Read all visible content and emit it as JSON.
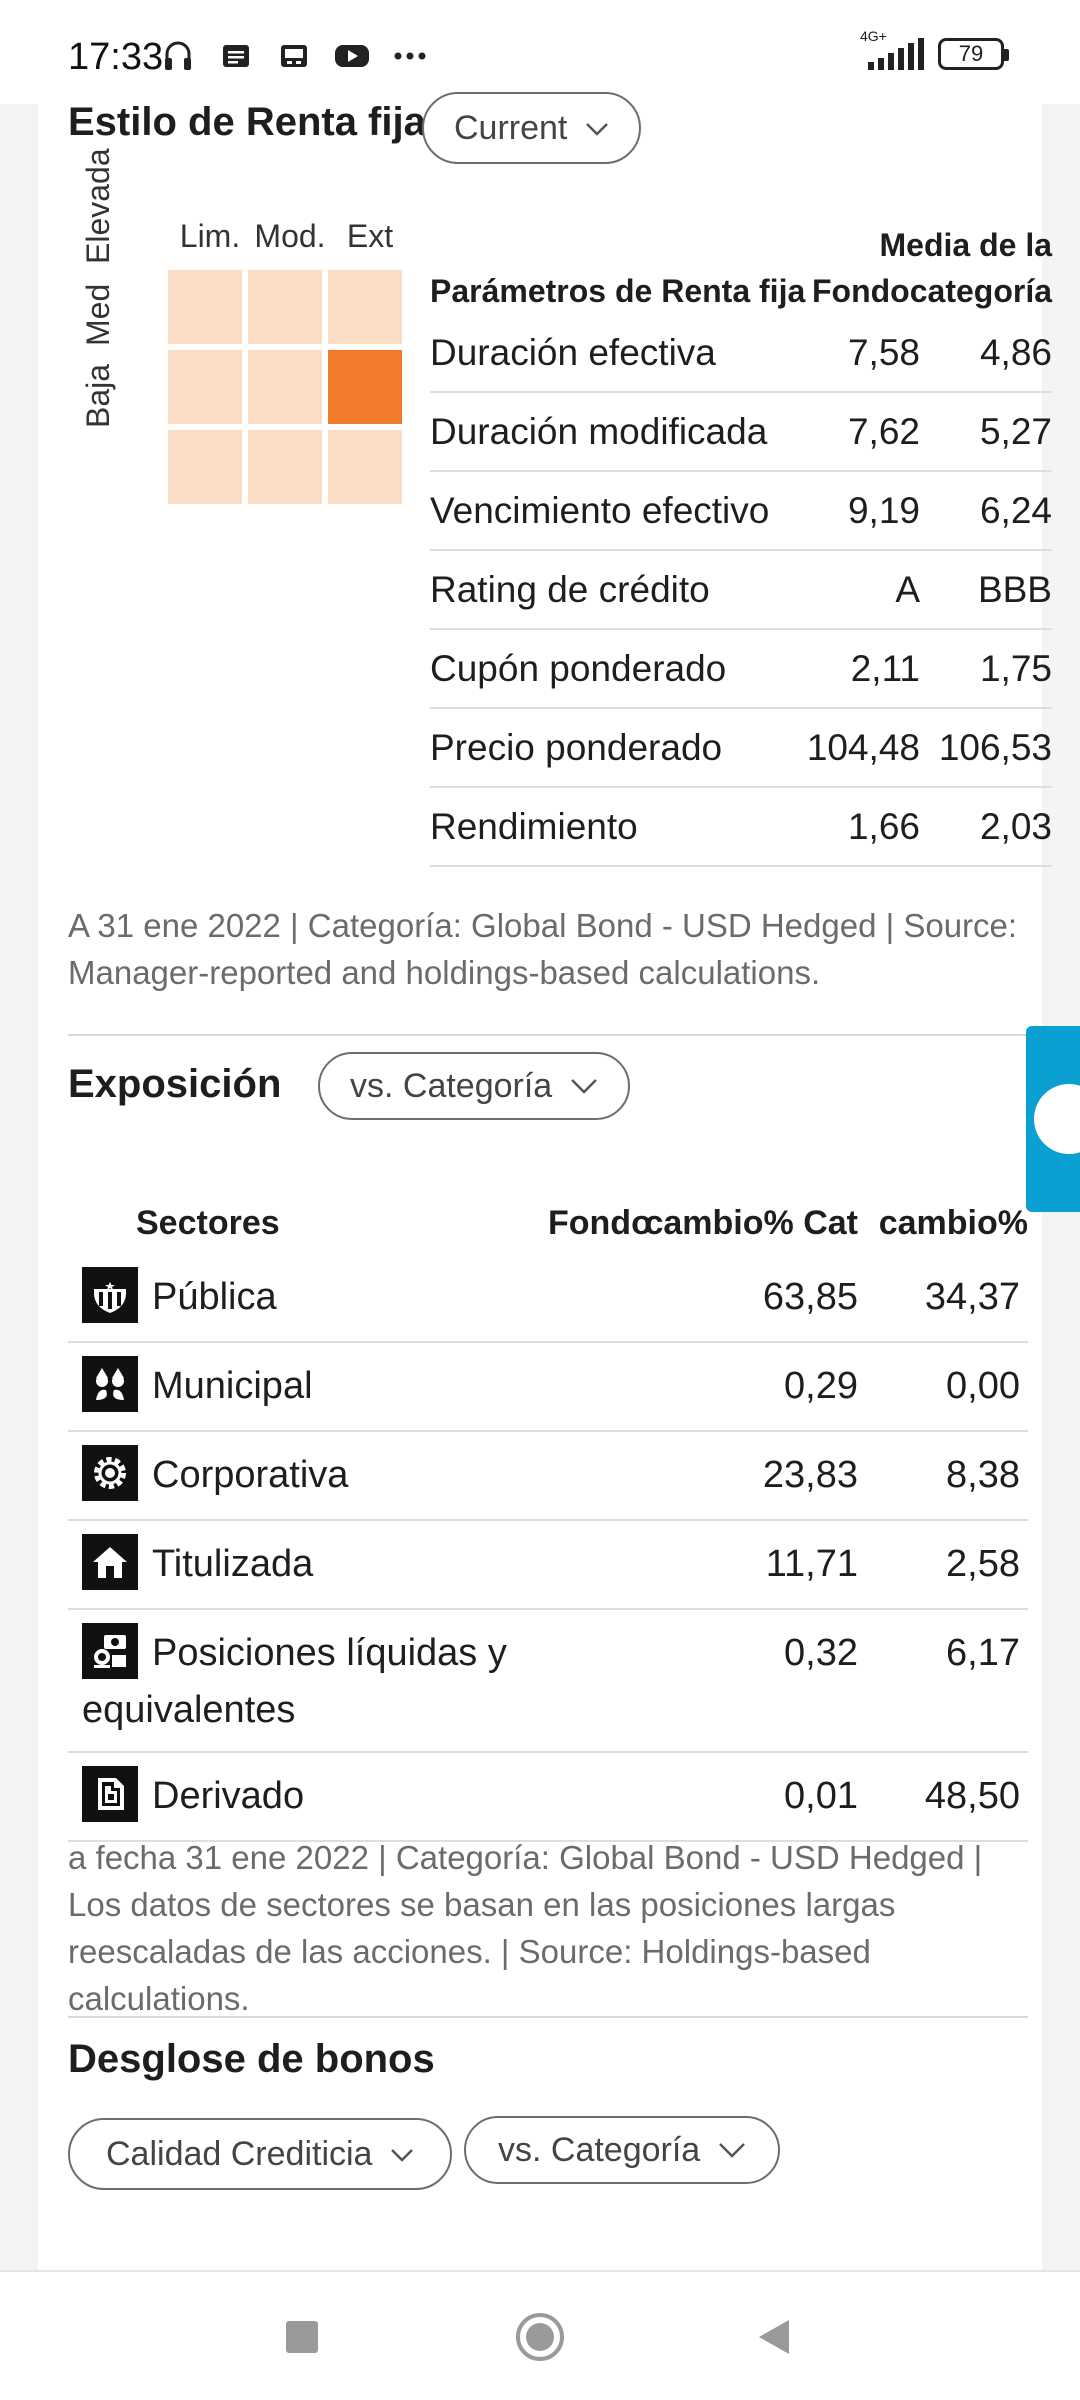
{
  "status_bar": {
    "time": "17:33",
    "icons": [
      "headphones-icon",
      "message-icon",
      "image-icon",
      "youtube-icon",
      "more-icon"
    ],
    "network": "4G+",
    "battery": "79"
  },
  "fixed_income": {
    "title": "Estilo de Renta fija",
    "dropdown": "Current",
    "style_box": {
      "columns": [
        "Lim.",
        "Mod.",
        "Ext"
      ],
      "rows": [
        "Baja",
        "Med",
        "Elevada"
      ],
      "active_cell": "Med / Ext"
    },
    "table": {
      "header": {
        "param": "Parámetros de Renta fija",
        "fund": "Fondo",
        "cat": "Media de la categoría",
        "fund_line": "Fondo",
        "cat_line1": "Media de la",
        "cat_line2": "categoría"
      },
      "rows": [
        {
          "label": "Duración efectiva",
          "fund": "7,58",
          "cat": "4,86"
        },
        {
          "label": "Duración modificada",
          "fund": "7,62",
          "cat": "5,27"
        },
        {
          "label": "Vencimiento efectivo",
          "fund": "9,19",
          "cat": "6,24"
        },
        {
          "label": "Rating de crédito",
          "fund": "A",
          "cat": "BBB"
        },
        {
          "label": "Cupón ponderado",
          "fund": "2,11",
          "cat": "1,75"
        },
        {
          "label": "Precio ponderado",
          "fund": "104,48",
          "cat": "106,53"
        },
        {
          "label": "Rendimiento",
          "fund": "1,66",
          "cat": "2,03"
        }
      ]
    },
    "note": "A 31 ene 2022 | Categoría: Global Bond - USD Hedged | Source: Manager-reported and holdings-based calculations."
  },
  "exposure": {
    "title": "Exposición",
    "dropdown": "vs. Categoría",
    "table": {
      "headers": {
        "sector": "Sectores",
        "fund": "Fondo",
        "change": "cambio%",
        "cat": "Cat",
        "cat_change": "cambio%"
      },
      "rows": [
        {
          "icon": "government-icon",
          "label": "Pública",
          "fund": "63,85",
          "cat": "34,37"
        },
        {
          "icon": "municipal-icon",
          "label": "Municipal",
          "fund": "0,29",
          "cat": "0,00"
        },
        {
          "icon": "corporate-gear-icon",
          "label": "Corporativa",
          "fund": "23,83",
          "cat": "8,38"
        },
        {
          "icon": "house-icon",
          "label": "Titulizada",
          "fund": "11,71",
          "cat": "2,58"
        },
        {
          "icon": "cash-icon",
          "label": "Posiciones líquidas y equivalentes",
          "fund": "0,32",
          "cat": "6,17"
        },
        {
          "icon": "document-icon",
          "label": "Derivado",
          "fund": "0,01",
          "cat": "48,50"
        }
      ]
    },
    "note": "a fecha 31 ene 2022 | Categoría: Global Bond - USD Hedged | Los datos de sectores se basan en las posiciones largas reescaladas de las acciones. | Source: Holdings-based calculations."
  },
  "bond_breakdown": {
    "title": "Desglose de bonos",
    "dropdown1": "Calidad Crediticia",
    "dropdown2": "vs. Categoría"
  },
  "colors": {
    "style_cell": "#fbdcc5",
    "style_active": "#f07b2a",
    "side_tab": "#0aa0d2"
  }
}
